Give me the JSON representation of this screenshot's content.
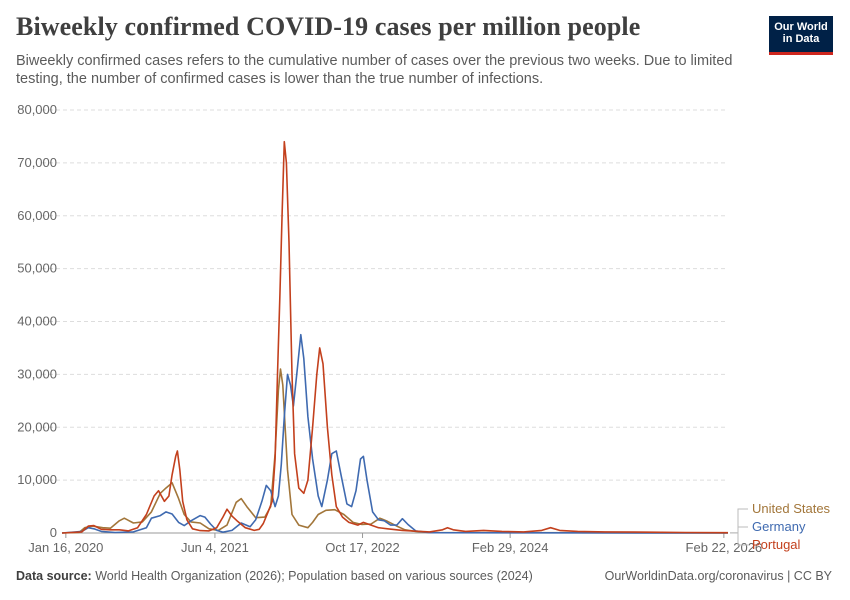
{
  "header": {
    "title": "Biweekly confirmed COVID-19 cases per million people",
    "subtitle": "Biweekly confirmed cases refers to the cumulative number of cases over the previous two weeks. Due to limited testing, the number of confirmed cases is lower than the true number of infections.",
    "logo_line1": "Our World",
    "logo_line2": "in Data"
  },
  "footer": {
    "source_label": "Data source:",
    "source_text": "World Health Organization (2026); Population based on various sources (2024)",
    "url_text": "OurWorldinData.org/coronavirus | CC BY"
  },
  "colors": {
    "United States": "#a2763a",
    "Germany": "#3f6ab0",
    "Portugal": "#c3401d",
    "grid": "#dddddd",
    "axis": "#666666"
  },
  "chart_data": {
    "type": "line",
    "title": "Biweekly confirmed COVID-19 cases per million people",
    "xlabel": "",
    "ylabel": "",
    "grid": true,
    "x_range": [
      "2020-01-03",
      "2026-03-08"
    ],
    "ylim": [
      0,
      80000
    ],
    "y_ticks": [
      0,
      10000,
      20000,
      30000,
      40000,
      50000,
      60000,
      70000,
      80000
    ],
    "y_tick_labels": [
      "0",
      "10,000",
      "20,000",
      "30,000",
      "40,000",
      "50,000",
      "60,000",
      "70,000",
      "80,000"
    ],
    "x_ticks": [
      "2020-01-16",
      "2021-06-04",
      "2022-10-17",
      "2024-02-29",
      "2026-02-22"
    ],
    "x_tick_labels": [
      "Jan 16, 2020",
      "Jun 4, 2021",
      "Oct 17, 2022",
      "Feb 29, 2024",
      "Feb 22, 2026"
    ],
    "legend_position": "right, at end of lines",
    "series": [
      {
        "name": "United States",
        "points": [
          [
            "2020-01-03",
            0
          ],
          [
            "2020-03-01",
            100
          ],
          [
            "2020-03-20",
            1000
          ],
          [
            "2020-04-15",
            1300
          ],
          [
            "2020-05-20",
            1000
          ],
          [
            "2020-06-15",
            900
          ],
          [
            "2020-07-15",
            2300
          ],
          [
            "2020-08-01",
            2800
          ],
          [
            "2020-09-01",
            1900
          ],
          [
            "2020-10-01",
            2100
          ],
          [
            "2020-11-01",
            4000
          ],
          [
            "2020-12-01",
            7500
          ],
          [
            "2020-12-20",
            8500
          ],
          [
            "2021-01-10",
            9500
          ],
          [
            "2021-02-01",
            6500
          ],
          [
            "2021-02-20",
            3500
          ],
          [
            "2021-03-15",
            2100
          ],
          [
            "2021-04-15",
            1900
          ],
          [
            "2021-05-15",
            800
          ],
          [
            "2021-06-15",
            500
          ],
          [
            "2021-07-15",
            1500
          ],
          [
            "2021-08-15",
            5800
          ],
          [
            "2021-09-01",
            6500
          ],
          [
            "2021-09-20",
            5000
          ],
          [
            "2021-10-20",
            2900
          ],
          [
            "2021-11-20",
            3000
          ],
          [
            "2021-12-10",
            5000
          ],
          [
            "2021-12-25",
            15000
          ],
          [
            "2022-01-05",
            27000
          ],
          [
            "2022-01-12",
            31000
          ],
          [
            "2022-01-20",
            28000
          ],
          [
            "2022-02-05",
            12000
          ],
          [
            "2022-02-20",
            3500
          ],
          [
            "2022-03-15",
            1500
          ],
          [
            "2022-04-15",
            1000
          ],
          [
            "2022-05-01",
            2000
          ],
          [
            "2022-05-20",
            3500
          ],
          [
            "2022-06-15",
            4300
          ],
          [
            "2022-07-15",
            4400
          ],
          [
            "2022-08-15",
            3500
          ],
          [
            "2022-09-15",
            2000
          ],
          [
            "2022-10-15",
            1600
          ],
          [
            "2022-11-15",
            1700
          ],
          [
            "2022-12-15",
            2800
          ],
          [
            "2023-01-10",
            2200
          ],
          [
            "2023-02-10",
            1300
          ],
          [
            "2023-03-10",
            600
          ],
          [
            "2023-04-15",
            300
          ],
          [
            "2023-06-01",
            100
          ],
          [
            "2026-03-08",
            0
          ]
        ]
      },
      {
        "name": "Germany",
        "points": [
          [
            "2020-01-03",
            0
          ],
          [
            "2020-03-10",
            300
          ],
          [
            "2020-04-01",
            1000
          ],
          [
            "2020-04-20",
            800
          ],
          [
            "2020-05-15",
            300
          ],
          [
            "2020-07-01",
            100
          ],
          [
            "2020-09-01",
            200
          ],
          [
            "2020-10-15",
            1000
          ],
          [
            "2020-11-01",
            2800
          ],
          [
            "2020-12-01",
            3300
          ],
          [
            "2020-12-20",
            4000
          ],
          [
            "2021-01-10",
            3600
          ],
          [
            "2021-02-01",
            2000
          ],
          [
            "2021-02-20",
            1400
          ],
          [
            "2021-03-15",
            2300
          ],
          [
            "2021-04-15",
            3300
          ],
          [
            "2021-05-01",
            3000
          ],
          [
            "2021-05-20",
            1700
          ],
          [
            "2021-06-10",
            500
          ],
          [
            "2021-07-01",
            150
          ],
          [
            "2021-08-01",
            500
          ],
          [
            "2021-09-01",
            1900
          ],
          [
            "2021-10-01",
            1200
          ],
          [
            "2021-10-20",
            2500
          ],
          [
            "2021-11-10",
            6000
          ],
          [
            "2021-11-25",
            9000
          ],
          [
            "2021-12-10",
            8000
          ],
          [
            "2021-12-25",
            5000
          ],
          [
            "2022-01-05",
            7000
          ],
          [
            "2022-01-15",
            13000
          ],
          [
            "2022-01-25",
            22000
          ],
          [
            "2022-02-05",
            30000
          ],
          [
            "2022-02-15",
            28000
          ],
          [
            "2022-02-25",
            24000
          ],
          [
            "2022-03-10",
            31000
          ],
          [
            "2022-03-22",
            37500
          ],
          [
            "2022-04-01",
            33000
          ],
          [
            "2022-04-15",
            22000
          ],
          [
            "2022-05-01",
            14000
          ],
          [
            "2022-05-20",
            7000
          ],
          [
            "2022-06-01",
            5000
          ],
          [
            "2022-06-20",
            10000
          ],
          [
            "2022-07-05",
            15000
          ],
          [
            "2022-07-20",
            15500
          ],
          [
            "2022-08-05",
            11000
          ],
          [
            "2022-08-25",
            5500
          ],
          [
            "2022-09-10",
            5000
          ],
          [
            "2022-09-25",
            8000
          ],
          [
            "2022-10-10",
            14000
          ],
          [
            "2022-10-20",
            14500
          ],
          [
            "2022-11-01",
            10000
          ],
          [
            "2022-11-20",
            4000
          ],
          [
            "2022-12-10",
            2500
          ],
          [
            "2022-12-30",
            2300
          ],
          [
            "2023-01-20",
            1500
          ],
          [
            "2023-02-10",
            1500
          ],
          [
            "2023-03-01",
            2700
          ],
          [
            "2023-03-20",
            1600
          ],
          [
            "2023-04-15",
            400
          ],
          [
            "2023-06-01",
            50
          ],
          [
            "2026-03-08",
            0
          ]
        ]
      },
      {
        "name": "Portugal",
        "points": [
          [
            "2020-01-03",
            0
          ],
          [
            "2020-03-10",
            200
          ],
          [
            "2020-04-01",
            1300
          ],
          [
            "2020-04-20",
            1400
          ],
          [
            "2020-05-15",
            700
          ],
          [
            "2020-06-15",
            600
          ],
          [
            "2020-07-15",
            600
          ],
          [
            "2020-08-15",
            400
          ],
          [
            "2020-09-15",
            1000
          ],
          [
            "2020-10-15",
            3500
          ],
          [
            "2020-11-10",
            7000
          ],
          [
            "2020-11-25",
            8000
          ],
          [
            "2020-12-15",
            6000
          ],
          [
            "2020-12-30",
            7000
          ],
          [
            "2021-01-10",
            11000
          ],
          [
            "2021-01-22",
            14500
          ],
          [
            "2021-01-28",
            15500
          ],
          [
            "2021-02-05",
            12000
          ],
          [
            "2021-02-15",
            6000
          ],
          [
            "2021-03-01",
            2500
          ],
          [
            "2021-03-20",
            800
          ],
          [
            "2021-04-15",
            450
          ],
          [
            "2021-05-15",
            400
          ],
          [
            "2021-06-10",
            1000
          ],
          [
            "2021-07-01",
            3000
          ],
          [
            "2021-07-15",
            4500
          ],
          [
            "2021-08-01",
            3200
          ],
          [
            "2021-08-20",
            2200
          ],
          [
            "2021-09-15",
            1000
          ],
          [
            "2021-10-15",
            500
          ],
          [
            "2021-11-01",
            700
          ],
          [
            "2021-11-15",
            1800
          ],
          [
            "2021-12-01",
            4000
          ],
          [
            "2021-12-15",
            6000
          ],
          [
            "2021-12-25",
            14000
          ],
          [
            "2022-01-02",
            30000
          ],
          [
            "2022-01-10",
            45000
          ],
          [
            "2022-01-18",
            61000
          ],
          [
            "2022-01-25",
            74000
          ],
          [
            "2022-02-01",
            70000
          ],
          [
            "2022-02-10",
            55000
          ],
          [
            "2022-02-20",
            30000
          ],
          [
            "2022-03-01",
            15000
          ],
          [
            "2022-03-15",
            8500
          ],
          [
            "2022-04-01",
            7500
          ],
          [
            "2022-04-15",
            10000
          ],
          [
            "2022-05-01",
            20000
          ],
          [
            "2022-05-15",
            30000
          ],
          [
            "2022-05-25",
            35000
          ],
          [
            "2022-06-05",
            32000
          ],
          [
            "2022-06-20",
            20000
          ],
          [
            "2022-07-05",
            11000
          ],
          [
            "2022-07-20",
            5000
          ],
          [
            "2022-08-10",
            3000
          ],
          [
            "2022-09-01",
            2000
          ],
          [
            "2022-10-01",
            1500
          ],
          [
            "2022-10-20",
            2000
          ],
          [
            "2022-11-15",
            1500
          ],
          [
            "2022-12-10",
            1000
          ],
          [
            "2023-01-10",
            800
          ],
          [
            "2023-03-01",
            500
          ],
          [
            "2023-05-01",
            300
          ],
          [
            "2023-06-01",
            200
          ],
          [
            "2023-07-15",
            600
          ],
          [
            "2023-08-01",
            1000
          ],
          [
            "2023-08-20",
            600
          ],
          [
            "2023-10-01",
            300
          ],
          [
            "2023-12-01",
            500
          ],
          [
            "2024-02-01",
            300
          ],
          [
            "2024-04-15",
            200
          ],
          [
            "2024-06-15",
            500
          ],
          [
            "2024-07-15",
            1000
          ],
          [
            "2024-08-15",
            500
          ],
          [
            "2024-10-15",
            300
          ],
          [
            "2025-01-15",
            200
          ],
          [
            "2025-06-15",
            150
          ],
          [
            "2025-10-15",
            100
          ],
          [
            "2026-03-08",
            50
          ]
        ]
      }
    ]
  }
}
